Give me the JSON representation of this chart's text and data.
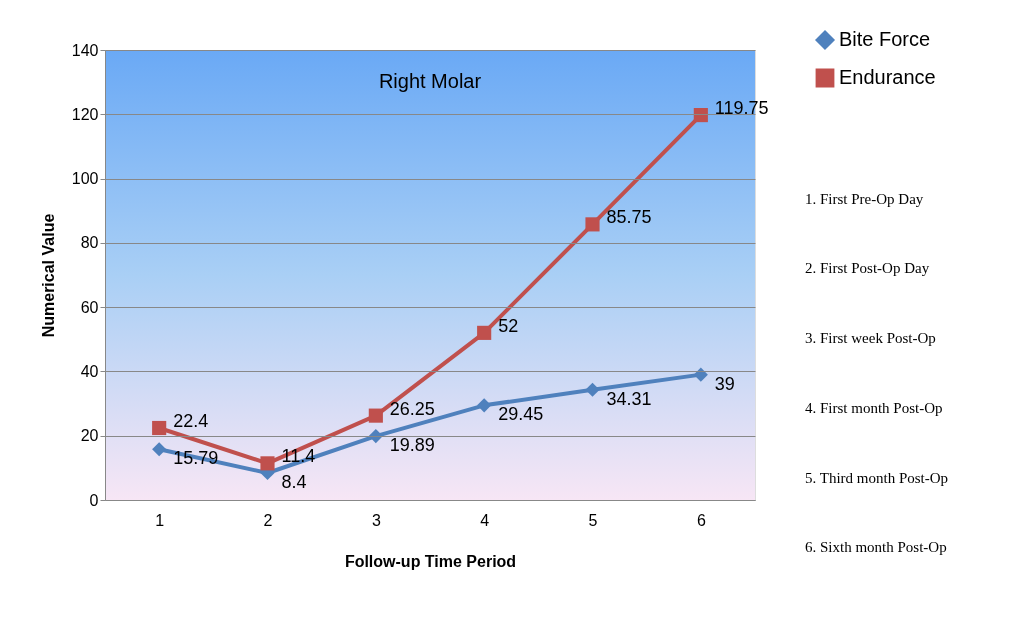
{
  "chart_data": {
    "type": "line",
    "title": "Right Molar",
    "xlabel": "Follow-up Time Period",
    "ylabel": "Numerical Value",
    "categories": [
      "1",
      "2",
      "3",
      "4",
      "5",
      "6"
    ],
    "series": [
      {
        "name": "Bite Force",
        "color": "#4f81bd",
        "marker": "diamond",
        "values": [
          15.79,
          8.4,
          19.89,
          29.45,
          34.31,
          39
        ]
      },
      {
        "name": "Endurance",
        "color": "#c0504d",
        "marker": "square",
        "values": [
          22.4,
          11.4,
          26.25,
          52,
          85.75,
          119.75
        ]
      }
    ],
    "ylim": [
      0,
      140
    ],
    "yticks": [
      0,
      20,
      40,
      60,
      80,
      100,
      120,
      140
    ],
    "grid": "y",
    "legend": "top right",
    "data_labels": true,
    "annotations": [
      "1. First Pre-Op Day",
      "2. First Post-Op Day",
      "3. First week Post-Op",
      "4. First month Post-Op",
      "5. Third month Post-Op",
      "6. Sixth month Post-Op"
    ]
  }
}
